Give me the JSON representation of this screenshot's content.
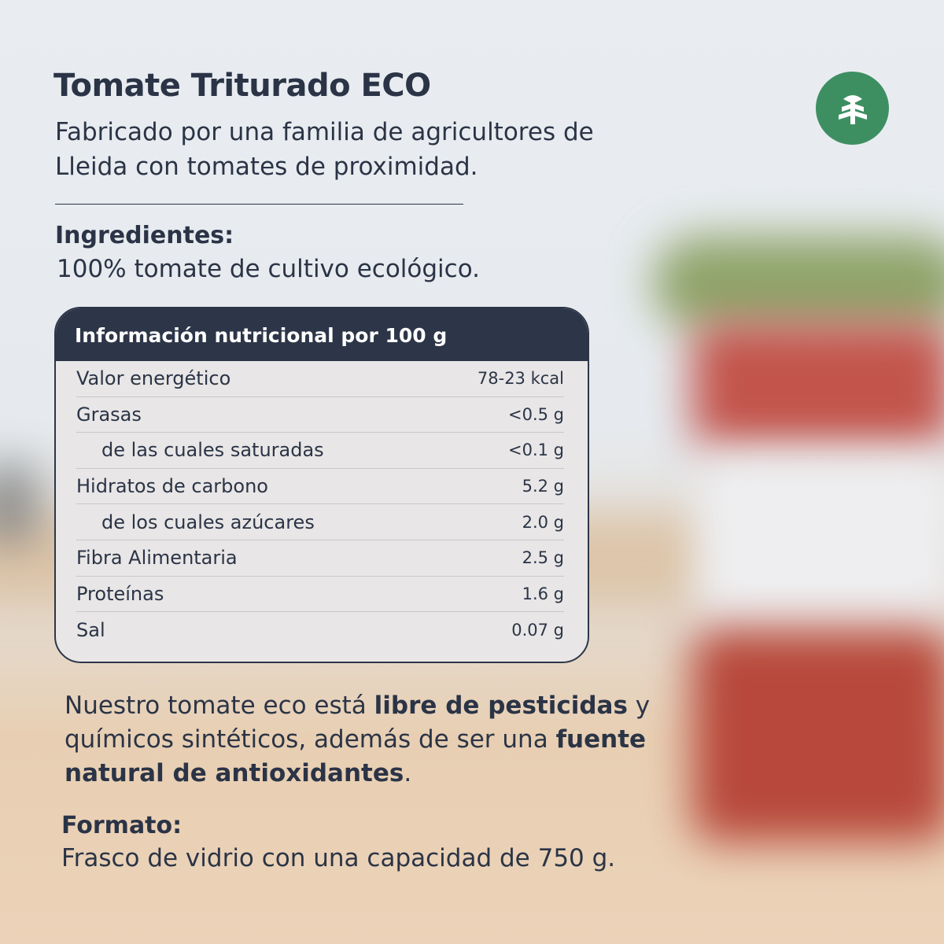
{
  "header": {
    "title": "Tomate Triturado ECO",
    "subtitle": "Fabricado por una familia de agricultores de Lleida con tomates de proximidad."
  },
  "logo": {
    "icon": "tree-icon",
    "color": "#3d8f61"
  },
  "ingredients": {
    "heading": "Ingredientes:",
    "text": "100% tomate de cultivo ecológico."
  },
  "nutrition": {
    "title": "Información nutricional por 100 g",
    "rows": [
      {
        "name": "Valor energético",
        "value": "78-23 kcal"
      },
      {
        "name": "Grasas",
        "value": "<0.5 g"
      },
      {
        "name": "de las cuales saturadas",
        "value": "<0.1 g"
      },
      {
        "name": "Hidratos de carbono",
        "value": "5.2 g"
      },
      {
        "name": "de los cuales azúcares",
        "value": "2.0 g"
      },
      {
        "name": "Fibra Alimentaria",
        "value": "2.5 g"
      },
      {
        "name": "Proteínas",
        "value": "1.6 g"
      },
      {
        "name": "Sal",
        "value": "0.07 g"
      }
    ]
  },
  "description": {
    "p1": "Nuestro tomate eco está ",
    "b1": "libre de pesticidas",
    "p2": " y químicos sintéticos, además de ser una ",
    "b2": "fuente natural de antioxidantes",
    "p3": "."
  },
  "format": {
    "heading": "Formato:",
    "text": "Frasco de vidrio con una capacidad de 750 g."
  },
  "colors": {
    "text": "#2b3446",
    "table_header": "#2d3648",
    "accent": "#3d8f61"
  }
}
